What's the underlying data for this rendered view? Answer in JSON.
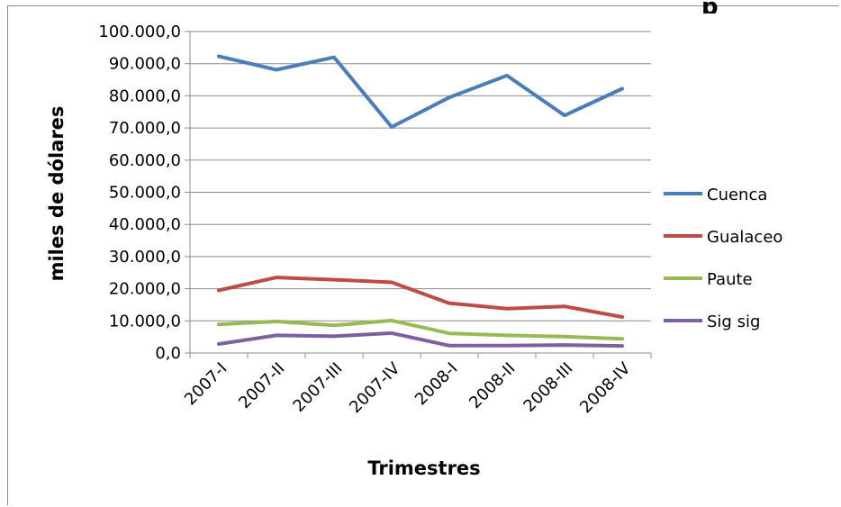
{
  "chart_data": {
    "type": "line",
    "title_fragment": "p",
    "xlabel": "Trimestres",
    "ylabel": "miles de dólares",
    "categories": [
      "2007-I",
      "2007-II",
      "2007-III",
      "2007-IV",
      "2008-I",
      "2008-II",
      "2008-III",
      "2008-IV"
    ],
    "ylim": [
      0,
      100000
    ],
    "yticks": [
      0,
      10000,
      20000,
      30000,
      40000,
      50000,
      60000,
      70000,
      80000,
      90000,
      100000
    ],
    "ytick_labels": [
      "0,0",
      "10.000,0",
      "20.000,0",
      "30.000,0",
      "40.000,0",
      "50.000,0",
      "60.000,0",
      "70.000,0",
      "80.000,0",
      "90.000,0",
      "100.000,0"
    ],
    "grid": true,
    "legend_position": "right",
    "series": [
      {
        "name": "Cuenca",
        "color": "#4a7ebb",
        "values": [
          92300,
          88100,
          92000,
          70300,
          79500,
          86300,
          73900,
          82200
        ]
      },
      {
        "name": "Gualaceo",
        "color": "#be4b48",
        "values": [
          19500,
          23500,
          22800,
          22000,
          15500,
          13800,
          14500,
          11200
        ]
      },
      {
        "name": "Paute",
        "color": "#98b954",
        "values": [
          8900,
          9800,
          8600,
          10100,
          6100,
          5500,
          5100,
          4400
        ]
      },
      {
        "name": "Sig sig",
        "color": "#7d60a0",
        "values": [
          2800,
          5500,
          5200,
          6200,
          2300,
          2300,
          2500,
          2200
        ]
      }
    ]
  }
}
